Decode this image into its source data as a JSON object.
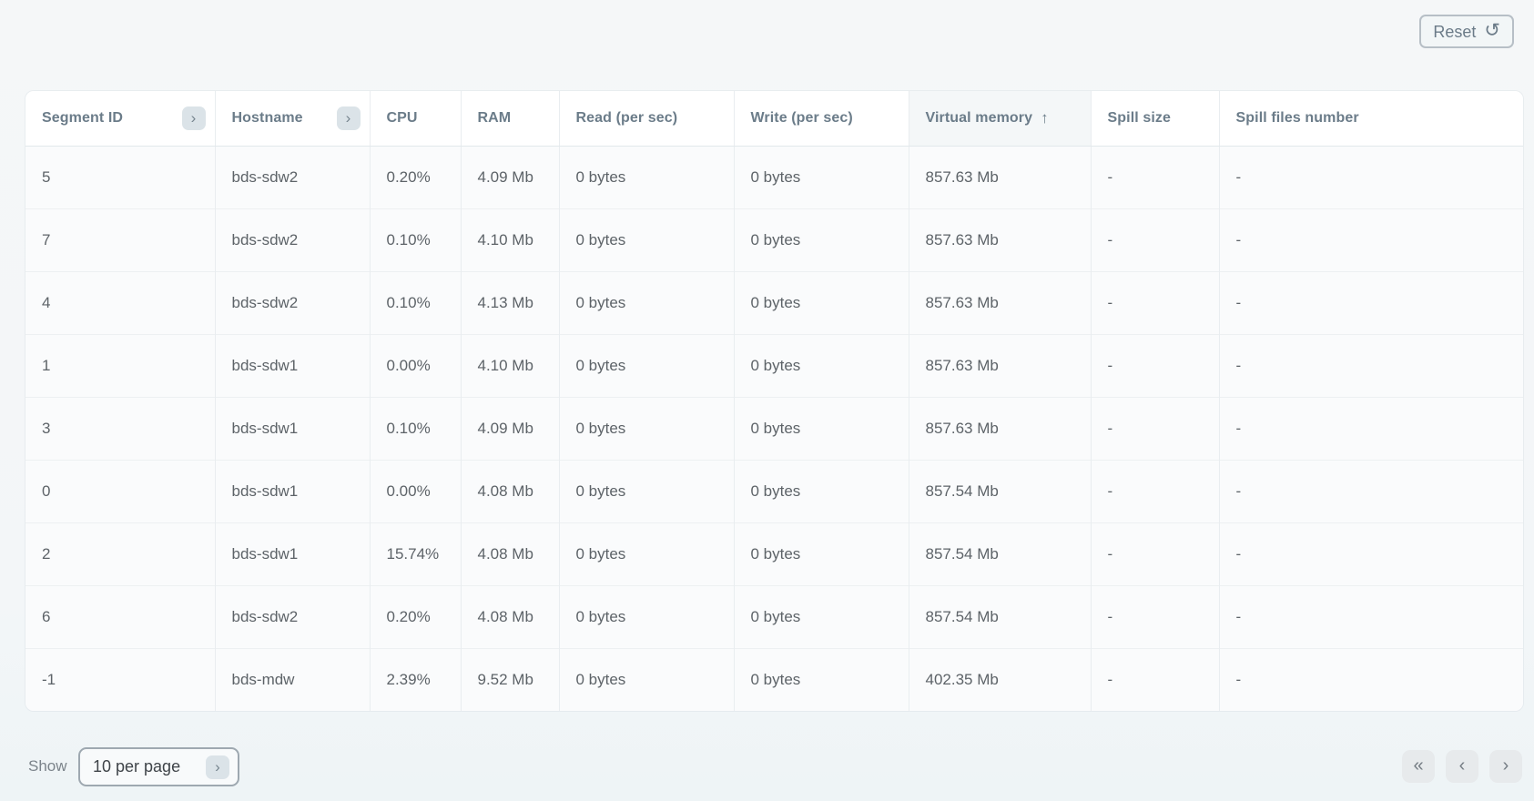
{
  "toolbar": {
    "reset_label": "Reset",
    "reset_icon": "↺"
  },
  "table": {
    "expand_icon": "›",
    "sort_asc_icon": "↑",
    "columns": [
      {
        "key": "segment-id",
        "label": "Segment ID",
        "has_expand": true
      },
      {
        "key": "hostname",
        "label": "Hostname",
        "has_expand": true
      },
      {
        "key": "cpu",
        "label": "CPU"
      },
      {
        "key": "ram",
        "label": "RAM"
      },
      {
        "key": "read-per-sec",
        "label": "Read (per sec)"
      },
      {
        "key": "write-per-sec",
        "label": "Write (per sec)"
      },
      {
        "key": "virtual-memory",
        "label": "Virtual memory",
        "sort": "asc"
      },
      {
        "key": "spill-size",
        "label": "Spill size"
      },
      {
        "key": "spill-files-number",
        "label": "Spill files number"
      }
    ],
    "rows": [
      [
        "5",
        "bds-sdw2",
        "0.20%",
        "4.09 Mb",
        "0 bytes",
        "0 bytes",
        "857.63 Mb",
        "-",
        "-"
      ],
      [
        "7",
        "bds-sdw2",
        "0.10%",
        "4.10 Mb",
        "0 bytes",
        "0 bytes",
        "857.63 Mb",
        "-",
        "-"
      ],
      [
        "4",
        "bds-sdw2",
        "0.10%",
        "4.13 Mb",
        "0 bytes",
        "0 bytes",
        "857.63 Mb",
        "-",
        "-"
      ],
      [
        "1",
        "bds-sdw1",
        "0.00%",
        "4.10 Mb",
        "0 bytes",
        "0 bytes",
        "857.63 Mb",
        "-",
        "-"
      ],
      [
        "3",
        "bds-sdw1",
        "0.10%",
        "4.09 Mb",
        "0 bytes",
        "0 bytes",
        "857.63 Mb",
        "-",
        "-"
      ],
      [
        "0",
        "bds-sdw1",
        "0.00%",
        "4.08 Mb",
        "0 bytes",
        "0 bytes",
        "857.54 Mb",
        "-",
        "-"
      ],
      [
        "2",
        "bds-sdw1",
        "15.74%",
        "4.08 Mb",
        "0 bytes",
        "0 bytes",
        "857.54 Mb",
        "-",
        "-"
      ],
      [
        "6",
        "bds-sdw2",
        "0.20%",
        "4.08 Mb",
        "0 bytes",
        "0 bytes",
        "857.54 Mb",
        "-",
        "-"
      ],
      [
        "-1",
        "bds-mdw",
        "2.39%",
        "9.52 Mb",
        "0 bytes",
        "0 bytes",
        "402.35 Mb",
        "-",
        "-"
      ]
    ]
  },
  "pagination": {
    "show_label": "Show",
    "page_size_value": "10 per page",
    "dropdown_icon": "›",
    "first_page_icon": "«",
    "prev_page_icon": "‹",
    "next_page_icon": "›"
  },
  "colors": {
    "page_background": "#f5f7f8",
    "header_text": "#6b7c89",
    "body_text": "#5d6368",
    "chip_background": "#dbe3e8",
    "row_background": "#fafbfc",
    "header_background": "#ffffff",
    "sorted_header_background": "#f4f7f8"
  }
}
